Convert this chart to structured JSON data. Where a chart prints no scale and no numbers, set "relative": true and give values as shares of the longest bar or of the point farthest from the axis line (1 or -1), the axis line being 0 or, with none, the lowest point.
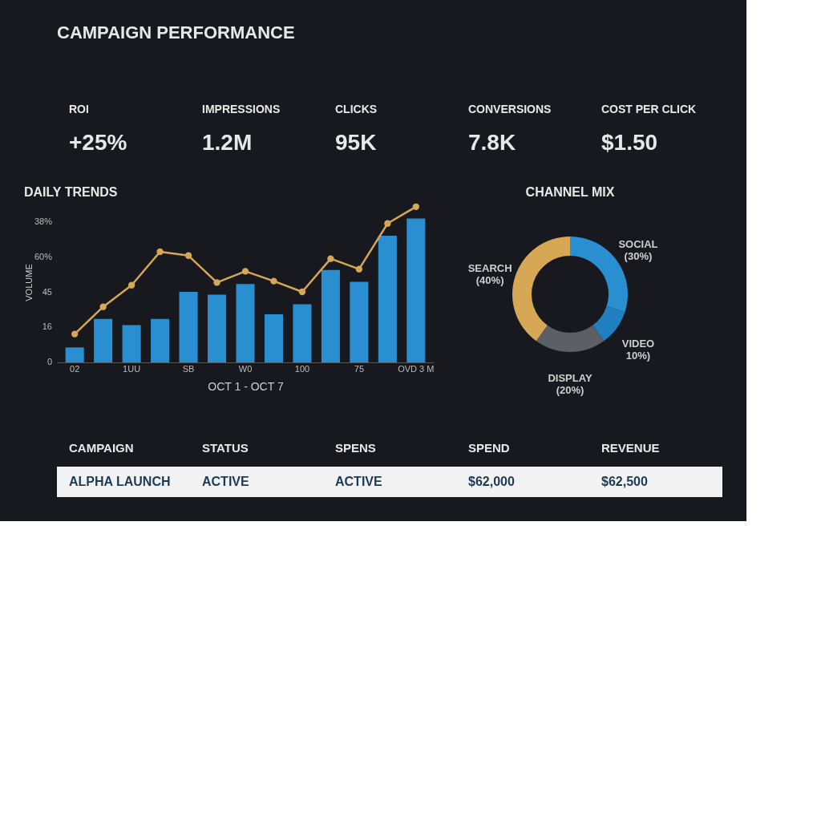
{
  "chart_data": [
    {
      "type": "other",
      "title": "CAMPAIGN PERFORMANCE",
      "annotations": [
        "ROI",
        "IMPRESSIONS",
        "CLICKS",
        "CONVERSIONS",
        "COST PER CLICK",
        "+25%",
        "1.2M",
        "95K",
        "7.8K",
        "$1.50"
      ]
    },
    {
      "type": "bar",
      "title": "DAILY TRENDS",
      "xlabel": "OCT 1 - OCT 7",
      "ylabel": "VOLUME",
      "relative": true,
      "categories": [
        "02",
        null,
        "1UU",
        null,
        "SB",
        null,
        "W0",
        null,
        "100",
        null,
        "75",
        null,
        "OVD 3 M"
      ],
      "series": [
        {
          "type": "bar",
          "color": "#2a8fd0",
          "values": [
            0.096,
            0.28,
            0.24,
            0.28,
            0.453,
            0.435,
            0.504,
            0.309,
            0.374,
            0.594,
            0.518,
            0.814,
            0.924
          ]
        },
        {
          "type": "line",
          "color": "#d6a856",
          "values": [
            0.182,
            0.357,
            0.496,
            0.711,
            0.686,
            0.513,
            0.585,
            0.522,
            0.453,
            0.666,
            0.599,
            0.892,
            1
          ]
        }
      ],
      "marker": "circle",
      "annotations": [
        "0",
        "16",
        "45",
        "60%",
        "38%"
      ]
    },
    {
      "type": "donut",
      "title": "CHANNEL MIX",
      "legend": false,
      "categories": [
        "SOCIAL",
        "VIDEO",
        "DISPLAY",
        "SEARCH"
      ],
      "values": [
        30,
        10,
        20,
        40
      ],
      "colors": [
        "#2a8fd0",
        "#1f7fbf",
        "#5c5f66",
        "#d6a856"
      ],
      "value_labels": [
        "(30%)",
        "10%)",
        "(20%)",
        "(40%)"
      ]
    },
    {
      "type": "other",
      "annotations": [
        "CAMPAIGN",
        "STATUS",
        "SPENS",
        "SPEND",
        "REVENUE",
        "ALPHA LAUNCH",
        "ACTIVE",
        "ACTIVE",
        "$62,000",
        "$62,500"
      ]
    }
  ]
}
